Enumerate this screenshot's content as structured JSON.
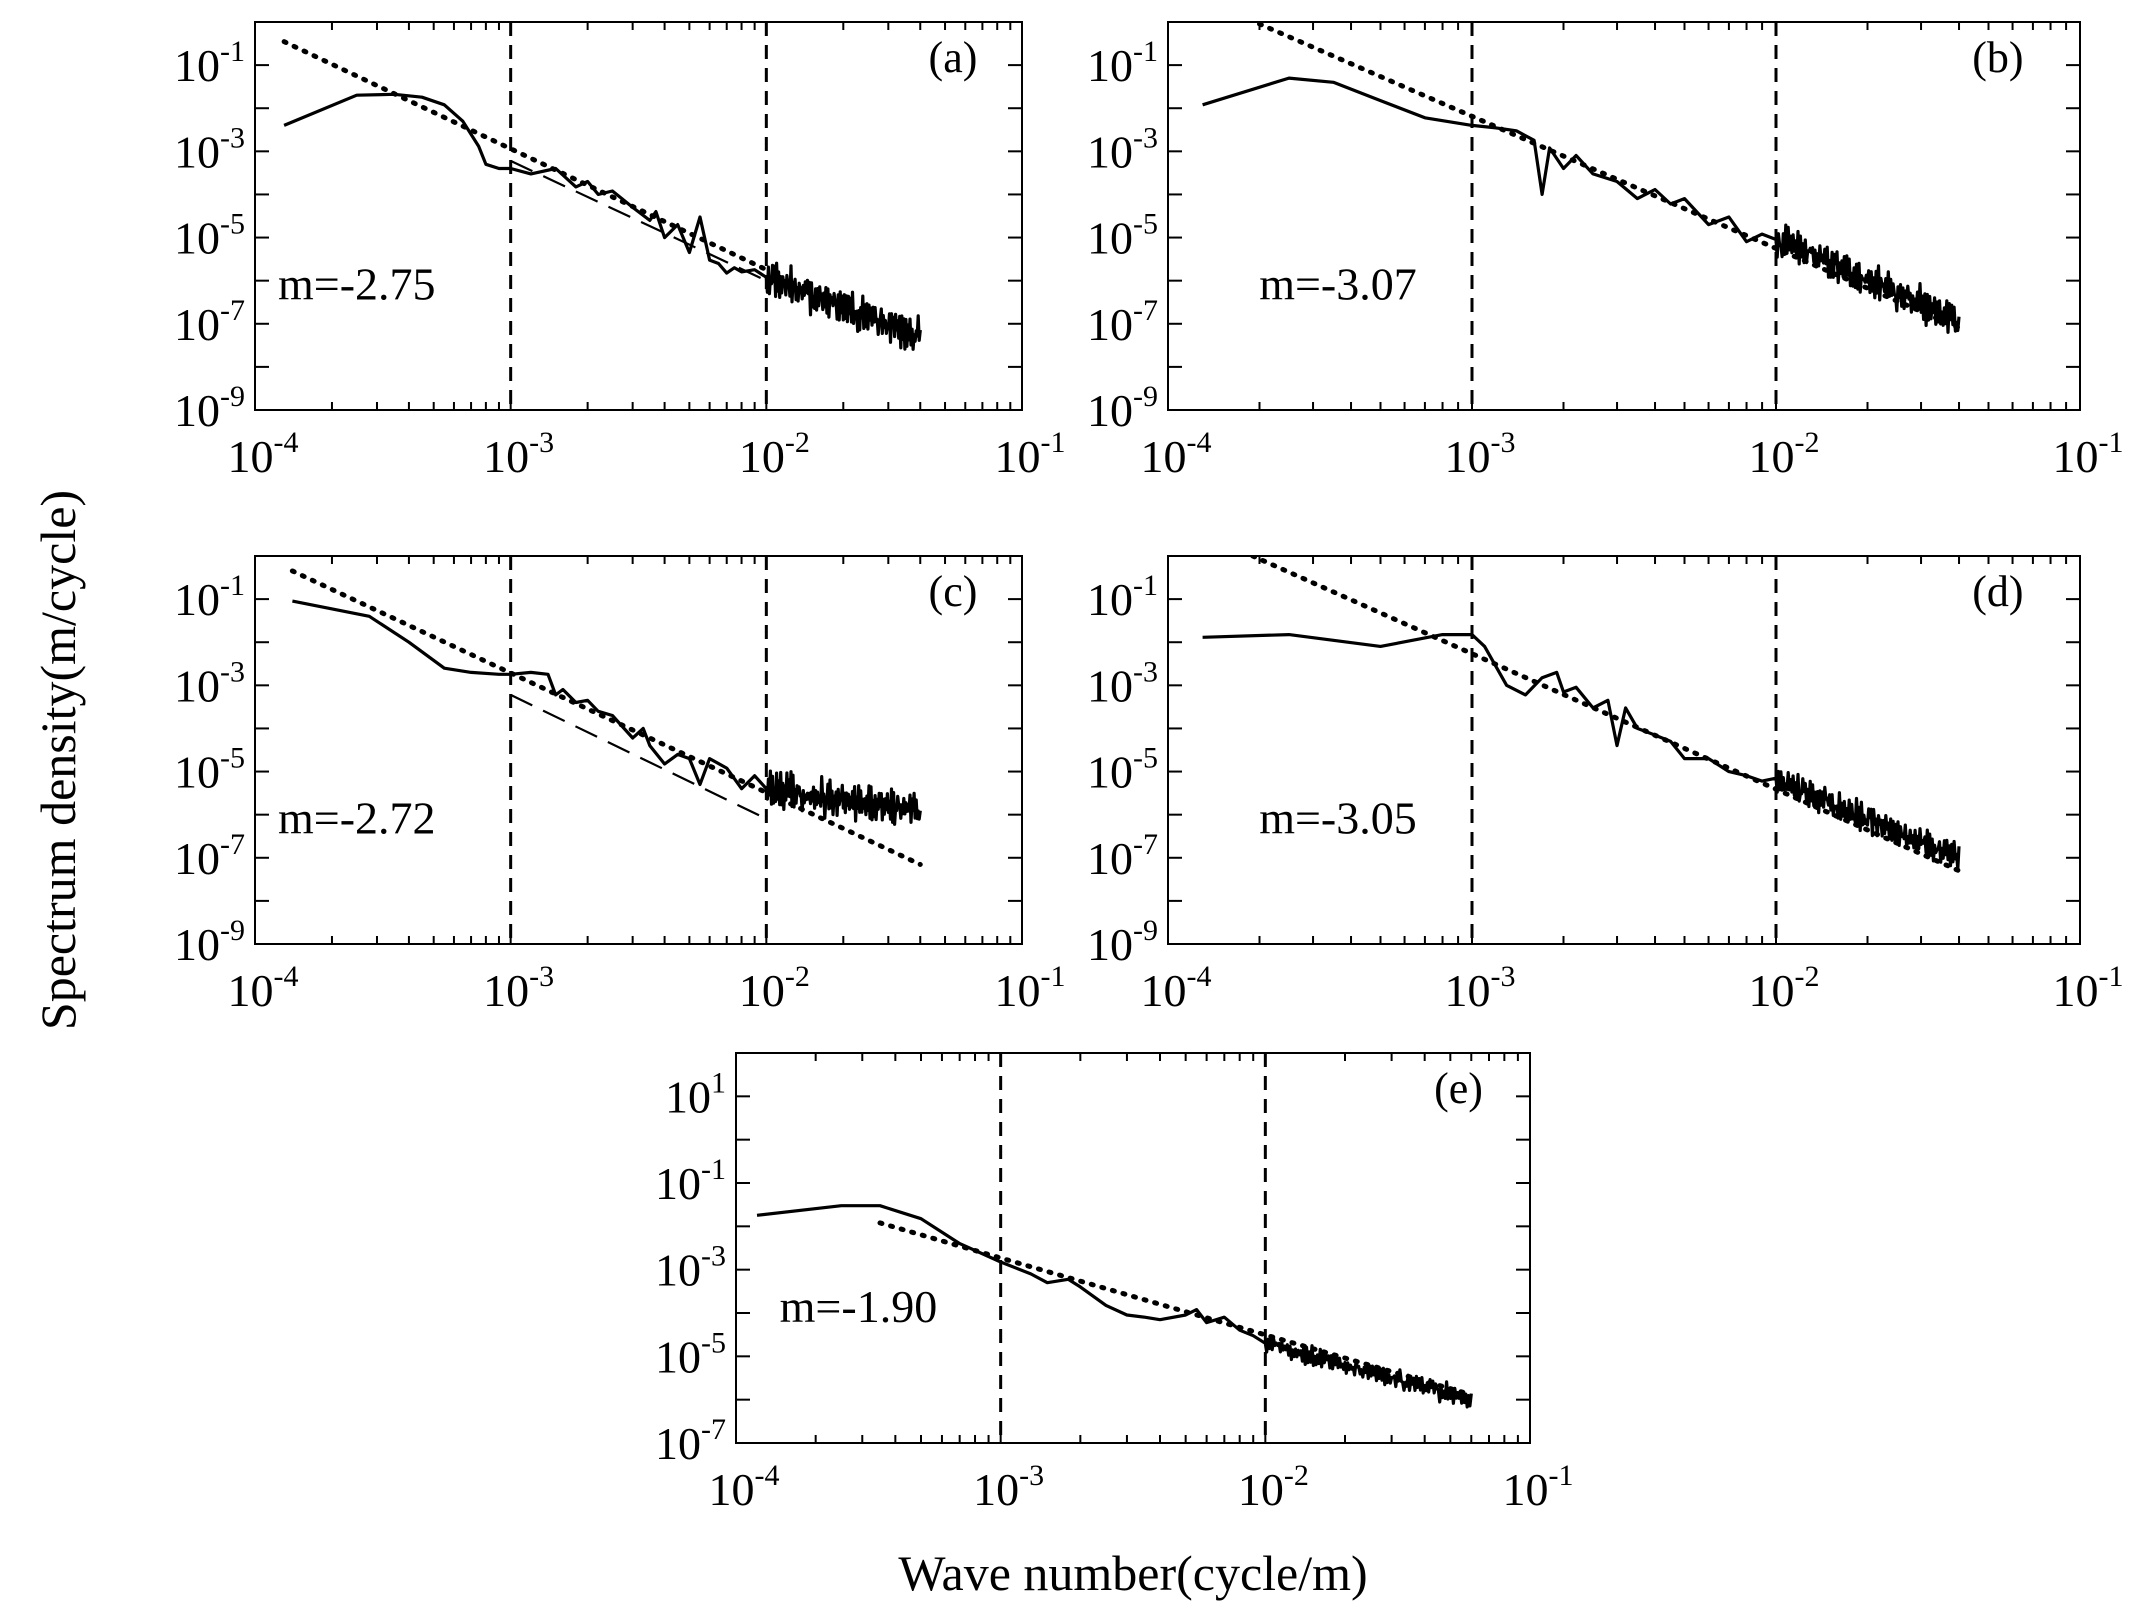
{
  "figure": {
    "ylabel": "Spectrum density(m/cycle)",
    "xlabel": "Wave number(cycle/m)"
  },
  "chart_data": [
    {
      "id": "a",
      "type": "line",
      "scale": "log-log",
      "panel_label": "(a)",
      "slope_label": "m=-2.75",
      "slope": -2.75,
      "xlim": [
        0.0001,
        0.1
      ],
      "ylim": [
        1e-09,
        1
      ],
      "xticks": [
        "10^-4",
        "10^-3",
        "10^-2",
        "10^-1"
      ],
      "yticks": [
        "10^-9",
        "10^-7",
        "10^-5",
        "10^-3",
        "10^-1"
      ],
      "reference_lines_x": [
        0.001,
        0.01
      ],
      "dotted_fit": [
        [
          0.00013,
          0.35
        ],
        [
          0.01,
          1.8e-06
        ]
      ],
      "dashed_fit": [
        [
          0.001,
          0.0006
        ],
        [
          0.01,
          1e-06
        ]
      ],
      "spectrum": {
        "x": [
          0.00013,
          0.00025,
          0.00035,
          0.00045,
          0.00055,
          0.00065,
          0.00075,
          0.0008,
          0.0009,
          0.001,
          0.0012,
          0.0015,
          0.0018,
          0.002,
          0.0022,
          0.0025,
          0.003,
          0.0035,
          0.0037,
          0.004,
          0.0045,
          0.005,
          0.0055,
          0.006,
          0.0065,
          0.007,
          0.0075,
          0.008,
          0.009,
          0.01
        ],
        "y": [
          0.004,
          0.02,
          0.021,
          0.018,
          0.012,
          0.005,
          0.0013,
          0.0005,
          0.0004,
          0.0004,
          0.0003,
          0.0004,
          0.00015,
          0.0002,
          0.0001,
          0.00012,
          5e-05,
          2.5e-05,
          4e-05,
          1e-05,
          2e-05,
          4.5e-06,
          3e-05,
          3e-06,
          2.5e-06,
          1.5e-06,
          2e-06,
          1.6e-06,
          1.8e-06,
          1.2e-06
        ]
      },
      "noise_tail": {
        "x_from": 0.01,
        "x_to": 0.04,
        "y_from": 1.2e-06,
        "y_to": 5e-08,
        "spread_decades": 0.55
      }
    },
    {
      "id": "b",
      "type": "line",
      "scale": "log-log",
      "panel_label": "(b)",
      "slope_label": "m=-3.07",
      "slope": -3.07,
      "xlim": [
        0.0001,
        0.1
      ],
      "ylim": [
        1e-09,
        1
      ],
      "xticks": [
        "10^-4",
        "10^-3",
        "10^-2",
        "10^-1"
      ],
      "yticks": [
        "10^-9",
        "10^-7",
        "10^-5",
        "10^-3",
        "10^-1"
      ],
      "reference_lines_x": [
        0.001,
        0.01
      ],
      "dotted_fit": [
        [
          0.0002,
          0.9
        ],
        [
          0.04,
          8e-08
        ]
      ],
      "dashed_fit": null,
      "spectrum": {
        "x": [
          0.00013,
          0.00025,
          0.00035,
          0.0005,
          0.0007,
          0.0009,
          0.001,
          0.0012,
          0.0014,
          0.0016,
          0.0017,
          0.0018,
          0.002,
          0.0022,
          0.0025,
          0.003,
          0.0035,
          0.004,
          0.0045,
          0.005,
          0.006,
          0.007,
          0.008,
          0.009,
          0.01
        ],
        "y": [
          0.012,
          0.05,
          0.04,
          0.015,
          0.006,
          0.0045,
          0.004,
          0.0035,
          0.003,
          0.0018,
          0.0001,
          0.0012,
          0.0004,
          0.0008,
          0.0003,
          0.0002,
          8e-05,
          0.00013,
          6e-05,
          8e-05,
          2e-05,
          3e-05,
          8e-06,
          1.2e-05,
          9e-06
        ]
      },
      "noise_tail": {
        "x_from": 0.01,
        "x_to": 0.04,
        "y_from": 9e-06,
        "y_to": 1.2e-07,
        "spread_decades": 0.55
      }
    },
    {
      "id": "c",
      "type": "line",
      "scale": "log-log",
      "panel_label": "(c)",
      "slope_label": "m=-2.72",
      "slope": -2.72,
      "xlim": [
        0.0001,
        0.1
      ],
      "ylim": [
        1e-09,
        1
      ],
      "xticks": [
        "10^-4",
        "10^-3",
        "10^-2",
        "10^-1"
      ],
      "yticks": [
        "10^-9",
        "10^-7",
        "10^-5",
        "10^-3",
        "10^-1"
      ],
      "reference_lines_x": [
        0.001,
        0.01
      ],
      "dotted_fit": [
        [
          0.00014,
          0.45
        ],
        [
          0.04,
          7e-08
        ]
      ],
      "dashed_fit": [
        [
          0.001,
          0.0006
        ],
        [
          0.01,
          8e-07
        ]
      ],
      "spectrum": {
        "x": [
          0.00014,
          0.00028,
          0.0004,
          0.00055,
          0.0007,
          0.0009,
          0.001,
          0.0012,
          0.0014,
          0.0015,
          0.0016,
          0.0018,
          0.002,
          0.0022,
          0.0025,
          0.003,
          0.0033,
          0.0035,
          0.004,
          0.0045,
          0.005,
          0.0055,
          0.006,
          0.007,
          0.008,
          0.009,
          0.01
        ],
        "y": [
          0.09,
          0.04,
          0.01,
          0.0025,
          0.002,
          0.0018,
          0.0018,
          0.002,
          0.0018,
          0.0006,
          0.0008,
          0.0004,
          0.00045,
          0.00025,
          0.0002,
          6e-05,
          0.0001,
          4e-05,
          1.5e-05,
          2.5e-05,
          2e-05,
          5e-06,
          2e-05,
          1.2e-05,
          4e-06,
          8e-06,
          4e-06
        ]
      },
      "noise_tail": {
        "x_from": 0.01,
        "x_to": 0.04,
        "y_from": 4e-06,
        "y_to": 1.2e-06,
        "spread_decades": 0.55
      }
    },
    {
      "id": "d",
      "type": "line",
      "scale": "log-log",
      "panel_label": "(d)",
      "slope_label": "m=-3.05",
      "slope": -3.05,
      "xlim": [
        0.0001,
        0.1
      ],
      "ylim": [
        1e-09,
        1
      ],
      "xticks": [
        "10^-4",
        "10^-3",
        "10^-2",
        "10^-1"
      ],
      "yticks": [
        "10^-9",
        "10^-7",
        "10^-5",
        "10^-3",
        "10^-1"
      ],
      "reference_lines_x": [
        0.001,
        0.01
      ],
      "dotted_fit": [
        [
          0.00019,
          1.0
        ],
        [
          0.04,
          5e-08
        ]
      ],
      "dashed_fit": null,
      "spectrum": {
        "x": [
          0.00013,
          0.00025,
          0.0005,
          0.0008,
          0.001,
          0.0011,
          0.0013,
          0.0015,
          0.0017,
          0.0019,
          0.002,
          0.0022,
          0.0025,
          0.0028,
          0.003,
          0.0032,
          0.0035,
          0.004,
          0.0045,
          0.005,
          0.006,
          0.007,
          0.008,
          0.009,
          0.01
        ],
        "y": [
          0.013,
          0.015,
          0.008,
          0.015,
          0.015,
          0.008,
          0.001,
          0.0006,
          0.0015,
          0.002,
          0.0007,
          0.0009,
          0.0003,
          0.00045,
          4e-05,
          0.0003,
          0.0001,
          7e-05,
          5e-05,
          2e-05,
          2e-05,
          1e-05,
          8e-06,
          6e-06,
          7e-06
        ]
      },
      "noise_tail": {
        "x_from": 0.01,
        "x_to": 0.04,
        "y_from": 6e-06,
        "y_to": 1e-07,
        "spread_decades": 0.45
      }
    },
    {
      "id": "e",
      "type": "line",
      "scale": "log-log",
      "panel_label": "(e)",
      "slope_label": "m=-1.90",
      "slope": -1.9,
      "xlim": [
        0.0001,
        0.1
      ],
      "ylim": [
        1e-07,
        100
      ],
      "xticks": [
        "10^-4",
        "10^-3",
        "10^-2",
        "10^-1"
      ],
      "yticks": [
        "10^-7",
        "10^-5",
        "10^-3",
        "10^-1",
        "10^1"
      ],
      "reference_lines_x": [
        0.001,
        0.01
      ],
      "dotted_fit": [
        [
          0.00035,
          0.012
        ],
        [
          0.06,
          1.3e-06
        ]
      ],
      "dashed_fit": null,
      "spectrum": {
        "x": [
          0.00012,
          0.00025,
          0.00035,
          0.0005,
          0.0007,
          0.001,
          0.0013,
          0.0015,
          0.0018,
          0.002,
          0.0025,
          0.003,
          0.0035,
          0.004,
          0.005,
          0.0055,
          0.006,
          0.007,
          0.008,
          0.009,
          0.01
        ],
        "y": [
          0.018,
          0.03,
          0.03,
          0.015,
          0.004,
          0.0015,
          0.0008,
          0.0005,
          0.0006,
          0.0004,
          0.00015,
          9e-05,
          8e-05,
          7e-05,
          9e-05,
          0.00012,
          6e-05,
          8e-05,
          4e-05,
          3e-05,
          2e-05
        ]
      },
      "noise_tail": {
        "x_from": 0.01,
        "x_to": 0.06,
        "y_from": 2e-05,
        "y_to": 1e-06,
        "spread_decades": 0.3
      }
    }
  ]
}
